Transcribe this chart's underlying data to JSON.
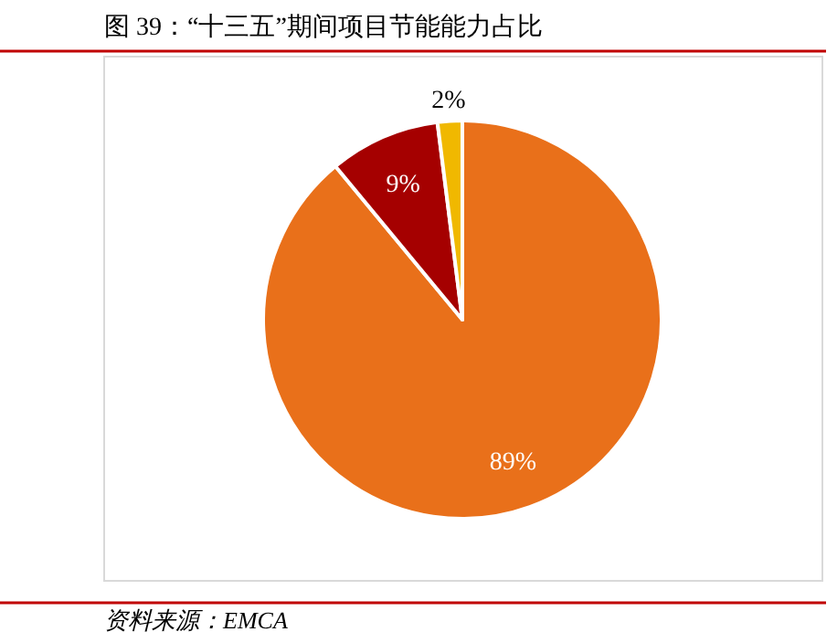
{
  "chart_data": {
    "type": "pie",
    "title": "图 39：“十三五”期间项目节能能力占比",
    "categories": [
      null,
      null,
      null
    ],
    "values": [
      89,
      9,
      2
    ],
    "colors": [
      "#e9701a",
      "#a50000",
      "#f0b800"
    ],
    "value_labels": [
      "89%",
      "9%",
      "2%"
    ],
    "annotations": [
      "资料来源：EMCA"
    ]
  }
}
